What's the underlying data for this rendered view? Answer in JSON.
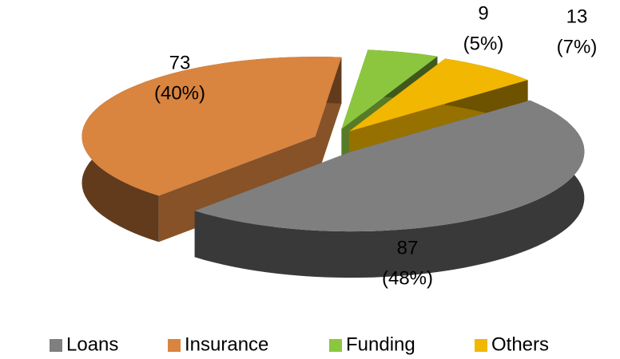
{
  "chart_data": {
    "type": "pie3d",
    "categories": [
      "Loans",
      "Insurance",
      "Funding",
      "Others"
    ],
    "values": [
      87,
      73,
      9,
      13
    ],
    "percent_labels": [
      "(48%)",
      "(40%)",
      "(5%)",
      "(7%)"
    ],
    "colors": [
      "#7f7f7f",
      "#d9843f",
      "#8cc63f",
      "#f2b700"
    ],
    "legend": "bottom"
  }
}
